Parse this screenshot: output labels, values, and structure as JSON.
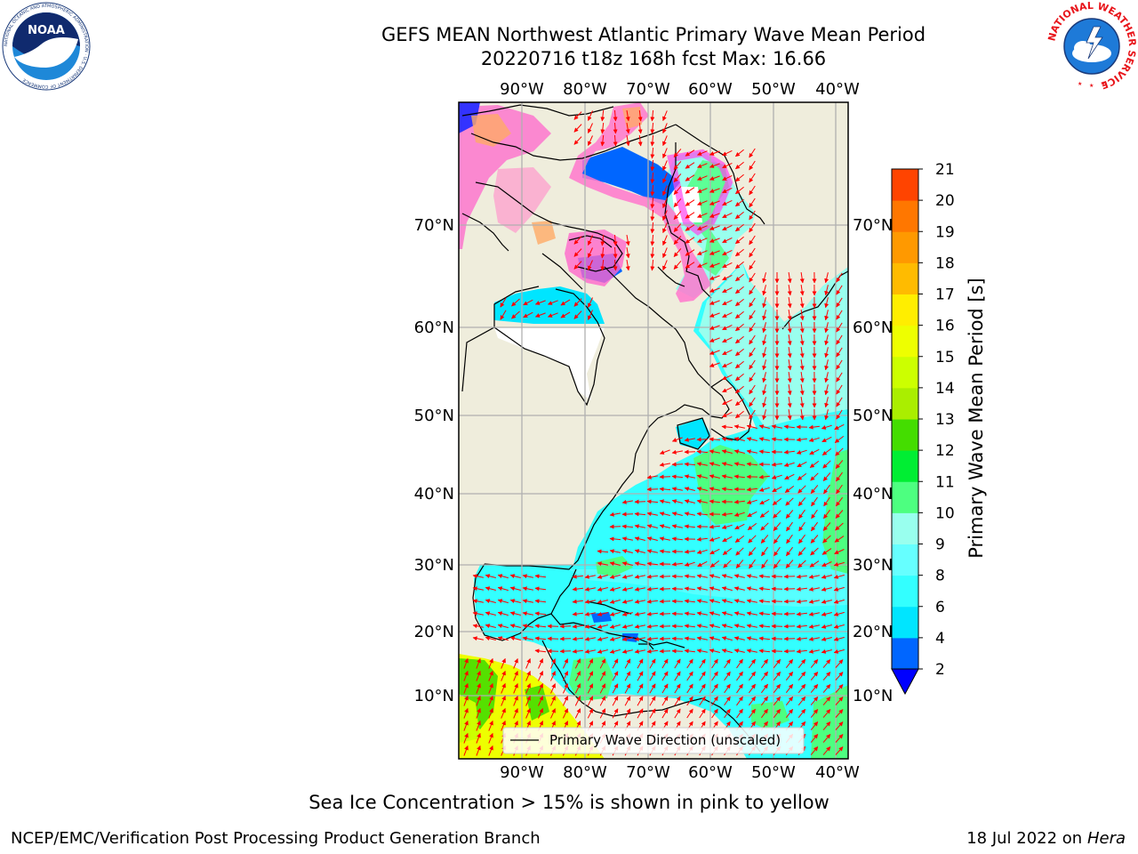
{
  "title_line1": "GEFS MEAN Northwest Atlantic Primary Wave Mean Period",
  "title_line2": "20220716 t18z 168h fcst   Max: 16.66",
  "logos": {
    "left": "NOAA",
    "left_ring": "NATIONAL OCEANIC AND ATMOSPHERIC ADMINISTRATION · U.S. DEPARTMENT OF COMMERCE",
    "right_ring": "NATIONAL WEATHER SERVICE"
  },
  "lon_labels": [
    "90°W",
    "80°W",
    "70°W",
    "60°W",
    "50°W",
    "40°W"
  ],
  "lat_labels": [
    "70°N",
    "60°N",
    "50°N",
    "40°N",
    "30°N",
    "20°N",
    "10°N"
  ],
  "legend_label": "Primary Wave Direction (unscaled)",
  "colorbar": {
    "label": "Primary Wave Mean Period [s]",
    "ticks": [
      "2",
      "4",
      "6",
      "8",
      "9",
      "10",
      "11",
      "12",
      "13",
      "14",
      "15",
      "16",
      "17",
      "18",
      "19",
      "20",
      "21"
    ],
    "colors": [
      "#0066ff",
      "#00e5ff",
      "#33ffff",
      "#66ffff",
      "#99ffee",
      "#4dff80",
      "#00ee33",
      "#44dd00",
      "#aaee00",
      "#ccff00",
      "#eeff00",
      "#ffee00",
      "#ffbb00",
      "#ff9900",
      "#ff7700",
      "#ff4400",
      "#ff0000"
    ],
    "under_color": "#0000ff"
  },
  "note": "Sea Ice Concentration > 15% is shown in pink to yellow",
  "footer_left": "NCEP/EMC/Verification Post Processing Product Generation Branch",
  "footer_right_prefix": "18 Jul 2022 on ",
  "footer_right_host": "Hera"
}
